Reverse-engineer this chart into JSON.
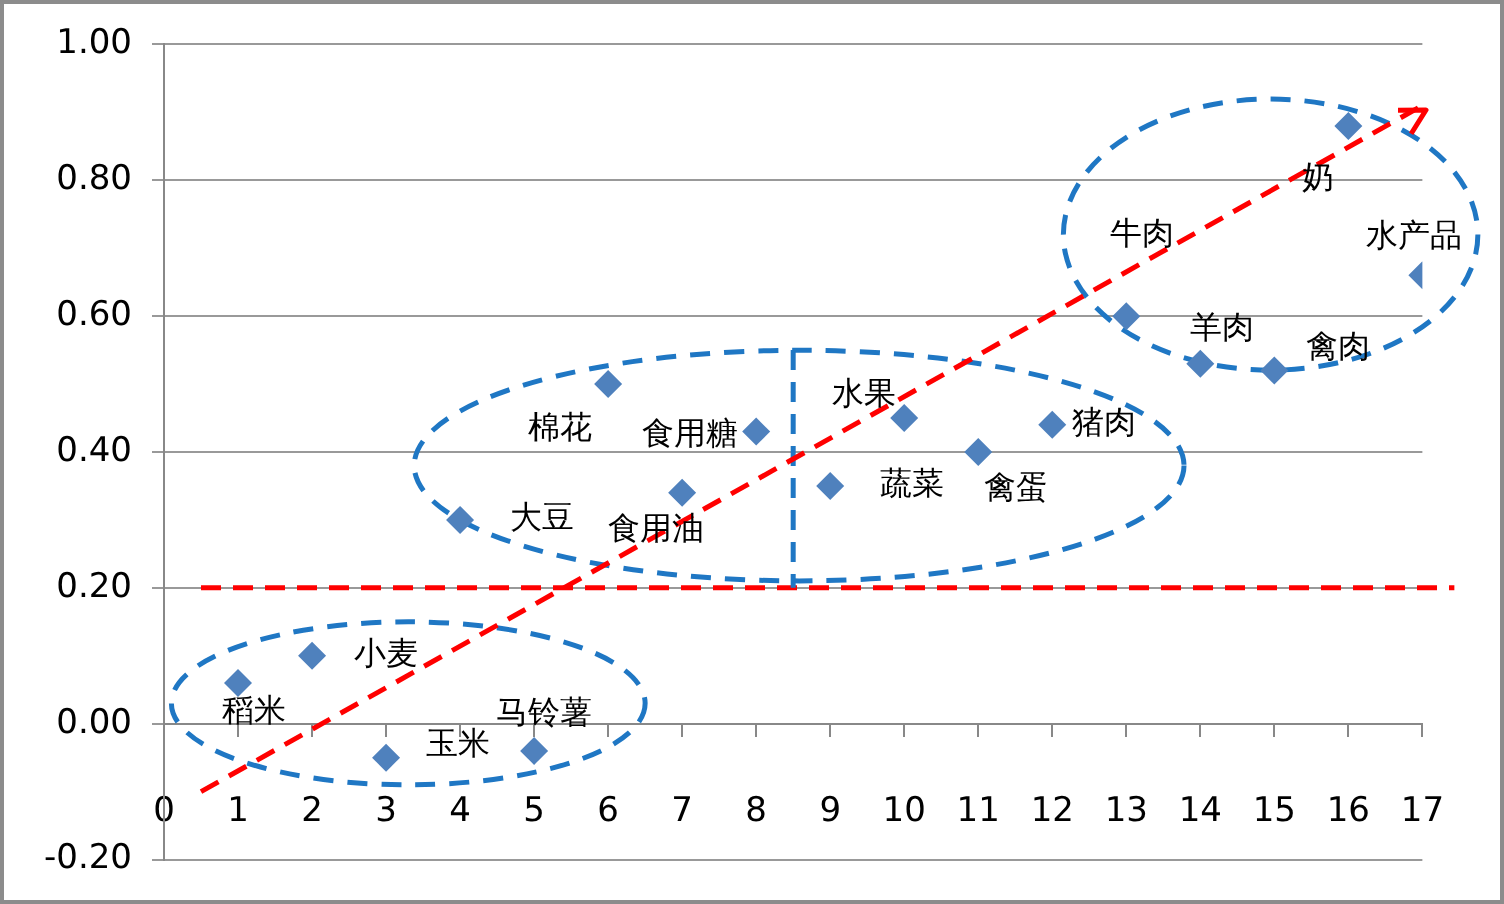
{
  "chart_data": {
    "type": "scatter",
    "x": [
      1,
      2,
      3,
      4,
      5,
      6,
      7,
      8,
      9,
      10,
      11,
      12,
      13,
      14,
      15,
      16,
      17
    ],
    "series": [
      {
        "type": "scatter",
        "color": "#4f81bd",
        "values": [
          0.06,
          0.1,
          -0.05,
          0.3,
          -0.04,
          0.5,
          0.34,
          0.43,
          0.35,
          0.45,
          0.4,
          0.44,
          0.6,
          0.53,
          0.52,
          0.88,
          0.66
        ]
      },
      {
        "type": "line",
        "color": "#ff0000",
        "x": [
          0.5,
          17
        ],
        "values": [
          -0.1,
          0.91
        ],
        "line_style": "dashed",
        "marker": "none"
      }
    ],
    "marker": "diamond",
    "xlim": [
      0,
      17
    ],
    "xticks": [
      0,
      1,
      2,
      3,
      4,
      5,
      6,
      7,
      8,
      9,
      10,
      11,
      12,
      13,
      14,
      15,
      16,
      17
    ],
    "ylim": [
      -0.2,
      1.0
    ],
    "yticks": [
      {
        "value": -0.2,
        "label": "-0.20"
      },
      {
        "value": 0,
        "label": "0.00"
      },
      {
        "value": 0.2,
        "label": "0.20"
      },
      {
        "value": 0.4,
        "label": "0.40"
      },
      {
        "value": 0.6,
        "label": "0.60"
      },
      {
        "value": 0.8,
        "label": "0.80"
      },
      {
        "value": 1.0,
        "label": "1.00"
      }
    ],
    "grid": "y",
    "legend": false,
    "ref_lines": [
      {
        "axis": "y",
        "value": 0.2,
        "color": "#ff0000",
        "line_style": "dashed"
      },
      {
        "axis": "x",
        "value": 8.5,
        "color": "#1f77c4",
        "line_style": "dashed"
      }
    ],
    "annotations": [
      {
        "text": "稻米",
        "x": 1,
        "y": 0.06
      },
      {
        "text": "小麦",
        "x": 2,
        "y": 0.1
      },
      {
        "text": "玉米",
        "x": 3,
        "y": -0.05
      },
      {
        "text": "大豆",
        "x": 4,
        "y": 0.3
      },
      {
        "text": "马铃薯",
        "x": 5,
        "y": -0.04
      },
      {
        "text": "棉花",
        "x": 6,
        "y": 0.5
      },
      {
        "text": "食用油",
        "x": 7,
        "y": 0.34
      },
      {
        "text": "食用糖",
        "x": 8,
        "y": 0.43
      },
      {
        "text": "蔬菜",
        "x": 9,
        "y": 0.35
      },
      {
        "text": "水果",
        "x": 10,
        "y": 0.45
      },
      {
        "text": "禽蛋",
        "x": 11,
        "y": 0.4
      },
      {
        "text": "猪肉",
        "x": 12,
        "y": 0.44
      },
      {
        "text": "牛肉",
        "x": 13,
        "y": 0.6
      },
      {
        "text": "羊肉",
        "x": 14,
        "y": 0.53
      },
      {
        "text": "禽肉",
        "x": 15,
        "y": 0.52
      },
      {
        "text": "奶",
        "x": 16,
        "y": 0.88
      },
      {
        "text": "水产品",
        "x": 17,
        "y": 0.66
      }
    ]
  }
}
